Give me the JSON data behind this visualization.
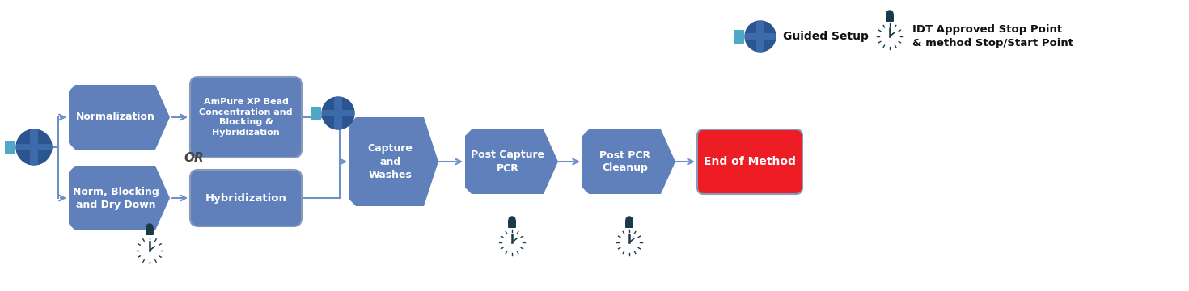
{
  "bg_color": "#ffffff",
  "blue": "#6080bc",
  "blue_mid": "#5575b5",
  "red": "#ee1c25",
  "dark": "#1a3a4a",
  "arrow_blue": "#7090c8",
  "legend_globe_label": "Guided Setup",
  "legend_stop_label": "IDT Approved Stop Point\n& method Stop/Start Point",
  "or_text": "OR",
  "box_normalization": "Normalization",
  "box_ampure": "AmPure XP Bead\nConcentration and\nBlocking &\nHybridization",
  "box_norm_block": "Norm, Blocking\nand Dry Down",
  "box_hybrid": "Hybridization",
  "box_capture": "Capture\nand\nWashes",
  "box_post_cap": "Post Capture\nPCR",
  "box_post_pcr": "Post PCR\nCleanup",
  "box_end": "End of Method"
}
